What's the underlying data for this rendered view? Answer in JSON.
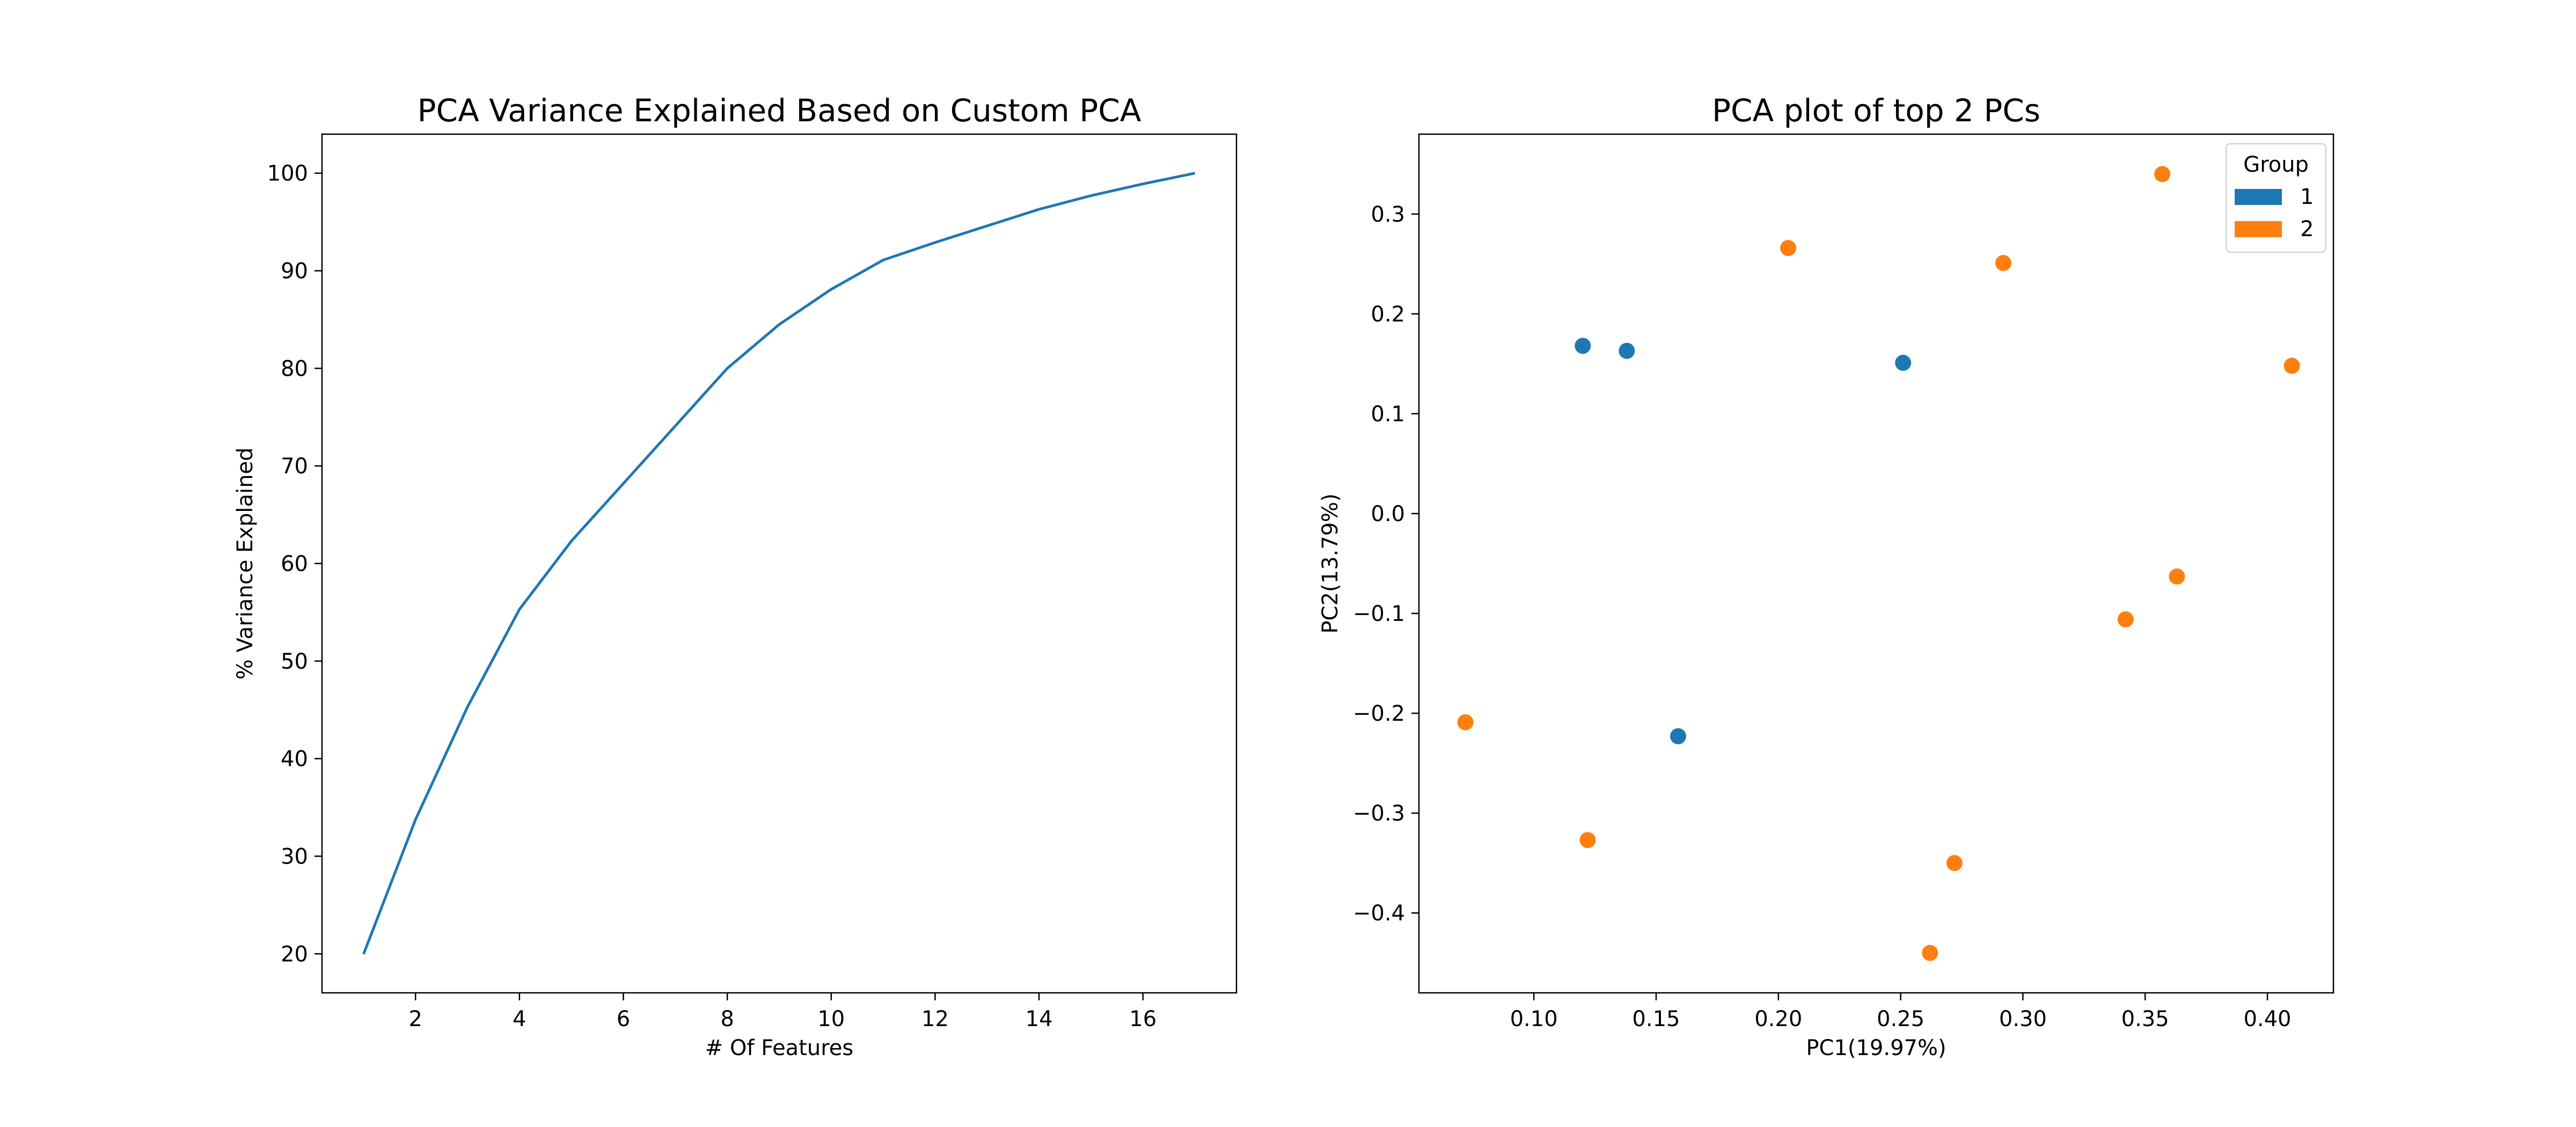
{
  "colors": {
    "series_1": "#1f77b4",
    "series_2": "#ff7f0e",
    "axis": "#000000",
    "background": "#ffffff"
  },
  "chart_data": [
    {
      "type": "line",
      "title": "PCA Variance Explained Based on Custom PCA",
      "xlabel": "# Of Features",
      "ylabel": "% Variance Explained",
      "xlim": [
        0.2,
        17.8
      ],
      "ylim": [
        16,
        104
      ],
      "xticks": [
        2,
        4,
        6,
        8,
        10,
        12,
        14,
        16
      ],
      "yticks": [
        20,
        30,
        40,
        50,
        60,
        70,
        80,
        90,
        100
      ],
      "grid": false,
      "x": [
        1,
        2,
        3,
        4,
        5,
        6,
        7,
        8,
        9,
        10,
        11,
        12,
        13,
        14,
        15,
        16,
        17
      ],
      "series": [
        {
          "values": [
            19.97,
            33.76,
            45.3,
            55.3,
            62.3,
            68.2,
            74.1,
            80.0,
            84.5,
            88.1,
            91.1,
            92.9,
            94.6,
            96.3,
            97.7,
            98.9,
            100.0
          ]
        }
      ]
    },
    {
      "type": "scatter",
      "title": "PCA plot of top 2 PCs",
      "xlabel": "PC1(19.97%)",
      "ylabel": "PC2(13.79%)",
      "xlim": [
        0.053,
        0.427
      ],
      "ylim": [
        -0.48,
        0.38
      ],
      "xticks": [
        0.1,
        0.15,
        0.2,
        0.25,
        0.3,
        0.35,
        0.4
      ],
      "xtick_labels": [
        "0.10",
        "0.15",
        "0.20",
        "0.25",
        "0.30",
        "0.35",
        "0.40"
      ],
      "yticks": [
        0.3,
        0.2,
        0.1,
        0.0,
        -0.1,
        -0.2,
        -0.3,
        -0.4
      ],
      "ytick_labels": [
        "0.3",
        "0.2",
        "0.1",
        "0.0",
        "−0.1",
        "−0.2",
        "−0.3",
        "−0.4"
      ],
      "grid": false,
      "legend": {
        "title": "Group",
        "placement": "top-right",
        "entries": [
          "1",
          "2"
        ]
      },
      "series": [
        {
          "name": "1",
          "points": [
            {
              "x": 0.12,
              "y": 0.168
            },
            {
              "x": 0.138,
              "y": 0.163
            },
            {
              "x": 0.251,
              "y": 0.151
            },
            {
              "x": 0.159,
              "y": -0.223
            }
          ]
        },
        {
          "name": "2",
          "points": [
            {
              "x": 0.357,
              "y": 0.34
            },
            {
              "x": 0.204,
              "y": 0.266
            },
            {
              "x": 0.292,
              "y": 0.251
            },
            {
              "x": 0.41,
              "y": 0.148
            },
            {
              "x": 0.363,
              "y": -0.063
            },
            {
              "x": 0.342,
              "y": -0.106
            },
            {
              "x": 0.072,
              "y": -0.209
            },
            {
              "x": 0.122,
              "y": -0.327
            },
            {
              "x": 0.272,
              "y": -0.35
            },
            {
              "x": 0.262,
              "y": -0.44
            }
          ]
        }
      ]
    }
  ]
}
